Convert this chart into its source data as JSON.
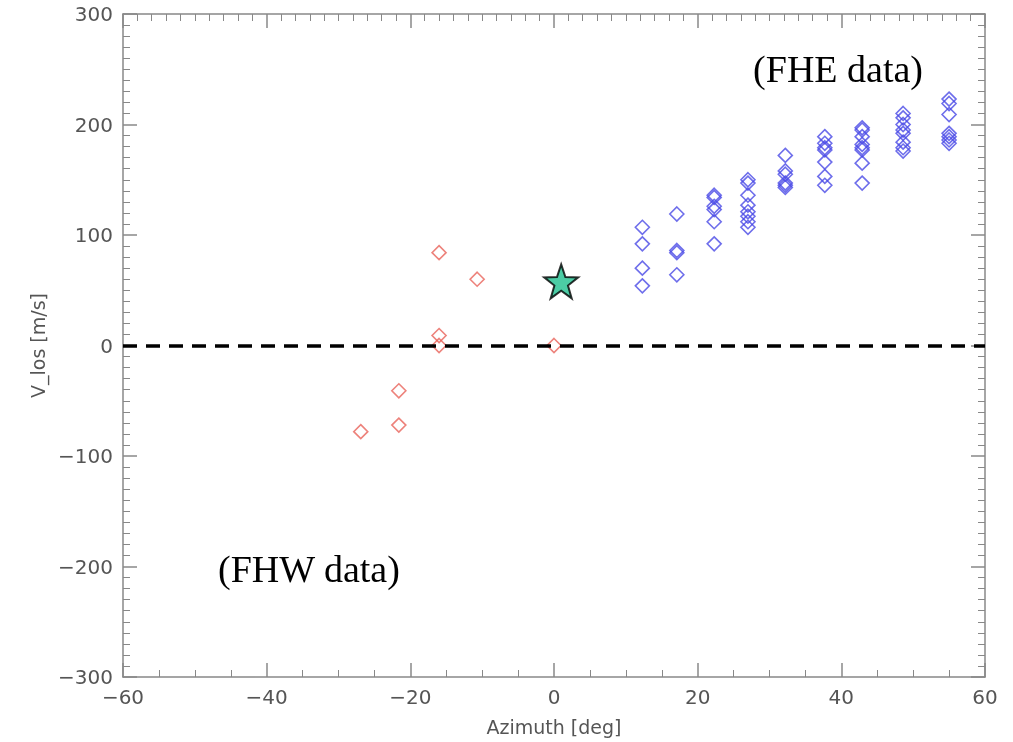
{
  "chart_data": {
    "type": "scatter",
    "xlabel": "Azimuth [deg]",
    "ylabel": "V_los [m/s]",
    "annotations": [
      "(FHE data)",
      "(FHW data)"
    ],
    "xlim": [
      -60,
      60
    ],
    "xticks": [
      -60,
      -40,
      -20,
      0,
      20,
      40,
      60
    ],
    "ylim": [
      -300,
      300
    ],
    "yticks": [
      -300,
      -200,
      -100,
      0,
      100,
      200,
      300
    ],
    "ref_lines": [
      {
        "axis": "y",
        "value": 0,
        "color": "#000000",
        "line_style": "dashed"
      }
    ],
    "series": [
      {
        "color": "#e8635a",
        "marker": "diamond",
        "x": [
          -26.9,
          -21.6,
          -21.6,
          -16,
          -16,
          -16,
          -10.7,
          0
        ],
        "values": [
          -78,
          -41,
          -72,
          84,
          9,
          0,
          60,
          0
        ]
      },
      {
        "color": "#4a4ae6",
        "marker": "diamond",
        "x": [
          12.3,
          12.3,
          12.3,
          12.3,
          17.1,
          17.1,
          17.1,
          17.1,
          22.3,
          22.3,
          22.3,
          22.3,
          22.3,
          22.3,
          27,
          27,
          27,
          27,
          27,
          27,
          27,
          27,
          32.2,
          32.2,
          32.2,
          32.2,
          32.2,
          32.2,
          37.7,
          37.7,
          37.7,
          37.7,
          37.7,
          37.7,
          37.7,
          42.9,
          42.9,
          42.9,
          42.9,
          42.9,
          42.9,
          42.9,
          42.9,
          48.6,
          48.6,
          48.6,
          48.6,
          48.6,
          48.6,
          48.6,
          48.6,
          55,
          55,
          55,
          55,
          55,
          55,
          55
        ],
        "values": [
          107,
          92,
          70,
          54,
          119,
          86,
          84,
          64,
          136,
          134,
          126,
          123,
          112,
          92,
          150,
          147,
          136,
          127,
          121,
          117,
          112,
          107,
          172,
          158,
          155,
          147,
          145,
          143,
          189,
          183,
          179,
          177,
          166,
          153,
          145,
          197,
          195,
          189,
          182,
          179,
          177,
          165,
          147,
          210,
          206,
          200,
          195,
          192,
          184,
          179,
          176,
          223,
          219,
          209,
          192,
          189,
          186,
          183
        ]
      },
      {
        "color": "#1fbf8f",
        "marker": "star",
        "x": [
          1
        ],
        "values": [
          58
        ]
      }
    ]
  }
}
